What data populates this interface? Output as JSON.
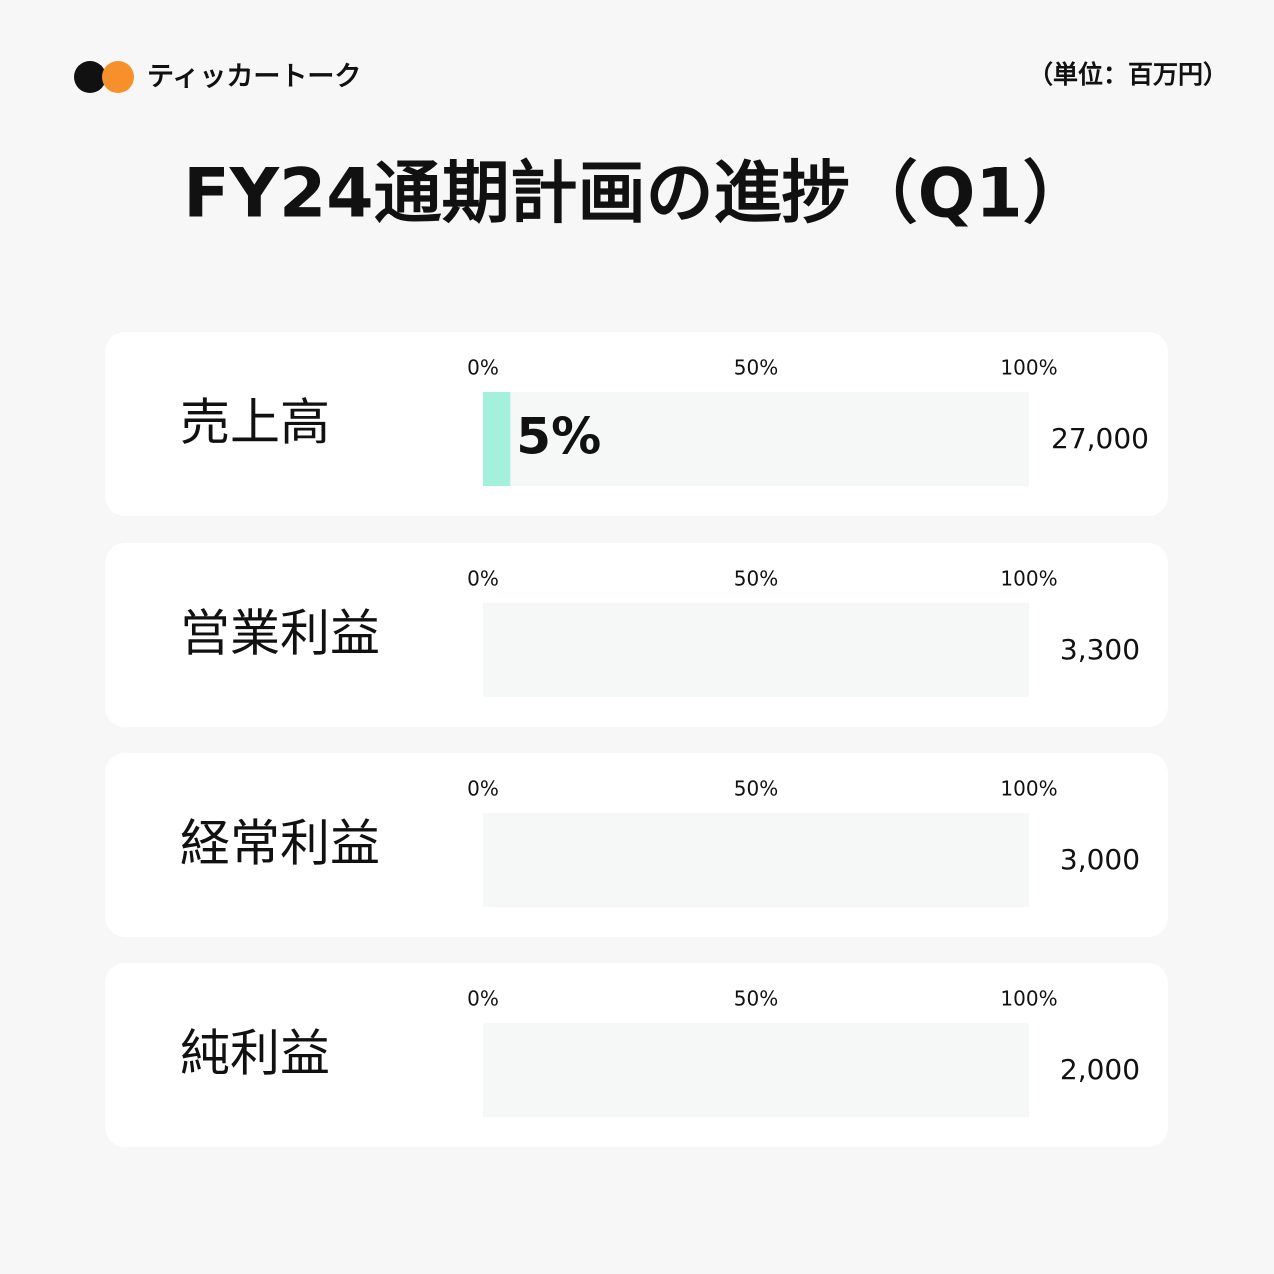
{
  "header": {
    "brand": "ティッカートーク",
    "unit": "（単位：百万円）"
  },
  "chart_data": {
    "type": "bar",
    "title": "FY24通期計画の進捗（Q1）",
    "categories": [
      "売上高",
      "営業利益",
      "経常利益",
      "純利益"
    ],
    "values": [
      5,
      null,
      null,
      null
    ],
    "value_labels": [
      "5%",
      null,
      null,
      null
    ],
    "plan_labels": [
      "27,000",
      "3,300",
      "3,000",
      "2,000"
    ],
    "color": "#a3f0dc",
    "xlim": [
      0,
      100
    ],
    "xticks": [
      {
        "value": 0,
        "label": "0%"
      },
      {
        "value": 50,
        "label": "50%"
      },
      {
        "value": 100,
        "label": "100%"
      }
    ]
  }
}
